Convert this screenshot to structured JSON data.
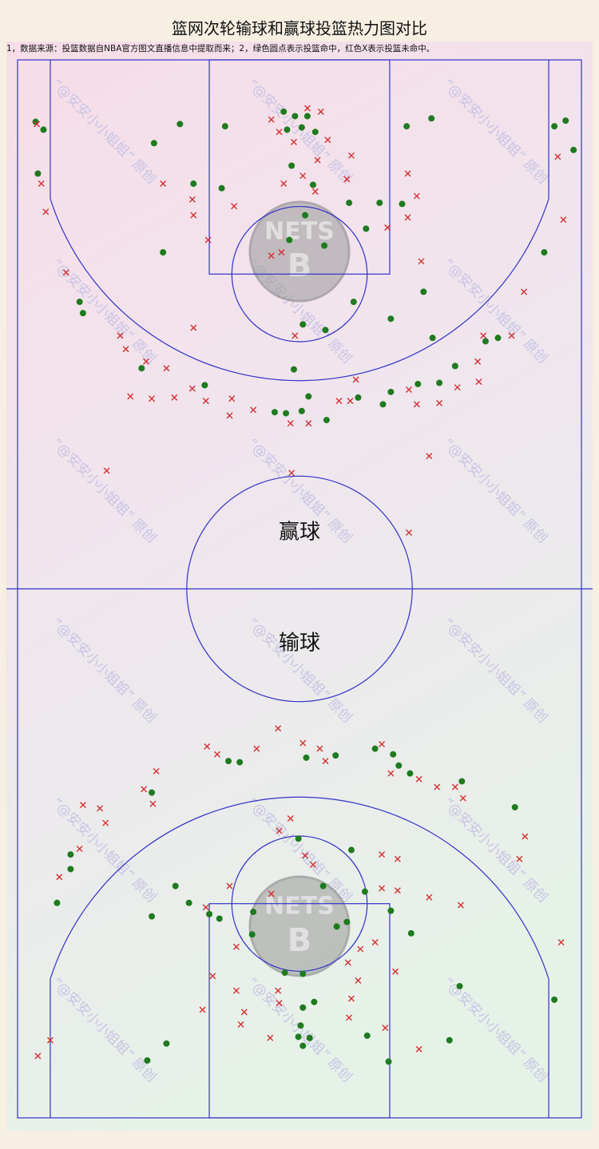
{
  "title": "篮网次轮输球和赢球投篮热力图对比",
  "note": "1，数据来源：投篮数据自NBA官方图文直播信息中提取而来；2，绿色圆点表示投篮命中，红色X表示投篮未命中。",
  "watermark": "“@安安小小姐姐” 原创",
  "logo_text": "NETS",
  "logo_letter": "B",
  "chart_data": [
    {
      "type": "scatter",
      "label": "赢球",
      "xlim": [
        0,
        50
      ],
      "ylim": [
        0,
        47
      ],
      "series": [
        {
          "color": "#1e7b1e",
          "marker": "o",
          "x": [
            1.6,
            2.3,
            1.8,
            14.4,
            18.4,
            12.1,
            15.6,
            18.1,
            23.6,
            24.6,
            25.7,
            25.2,
            23.9,
            26.4,
            34.5,
            36.7,
            47.6,
            48.6,
            49.3,
            24.3,
            26.2,
            25.5,
            24.1,
            27.2,
            29.4,
            32.1,
            34.1,
            30.9,
            12.9,
            46.7,
            36.0,
            29.8,
            5.5,
            5.8,
            33.1,
            25.3,
            27.3,
            36.8,
            41.5,
            42.6,
            24.5,
            11.0,
            16.6,
            38.8,
            37.4,
            35.5,
            33.1,
            32.4,
            30.2,
            25.8,
            25.2,
            23.8,
            22.8,
            27.4
          ],
          "y": [
            5.5,
            6.2,
            10.1,
            5.7,
            5.9,
            7.4,
            11.0,
            11.4,
            4.6,
            5.0,
            5.0,
            6.0,
            6.2,
            6.4,
            5.9,
            5.2,
            5.9,
            5.4,
            8.0,
            9.4,
            11.1,
            13.8,
            16.0,
            16.5,
            12.7,
            12.7,
            12.8,
            15.0,
            17.1,
            17.1,
            20.6,
            21.5,
            21.5,
            22.5,
            23.0,
            23.5,
            24.0,
            24.7,
            25.0,
            24.7,
            27.5,
            27.4,
            28.9,
            27.2,
            28.7,
            28.8,
            29.5,
            30.6,
            30.0,
            29.9,
            31.2,
            31.4,
            31.3,
            32.0
          ]
        },
        {
          "color": "#d43030",
          "marker": "x",
          "x": [
            1.7,
            2.1,
            2.5,
            12.9,
            15.5,
            15.6,
            16.9,
            19.2,
            22.5,
            23.2,
            24.5,
            25.7,
            26.9,
            27.5,
            26.6,
            23.6,
            25.3,
            26.4,
            29.2,
            29.6,
            34.6,
            35.4,
            34.6,
            32.8,
            22.5,
            23.4,
            35.8,
            47.9,
            48.4,
            4.3,
            15.6,
            9.1,
            9.6,
            11.4,
            13.2,
            10.0,
            11.9,
            13.9,
            15.5,
            16.7,
            19.0,
            18.8,
            20.9,
            24.2,
            25.8,
            28.5,
            29.5,
            30.0,
            34.7,
            35.4,
            37.4,
            39.0,
            40.8,
            40.9,
            41.3,
            43.8,
            44.9,
            36.5,
            24.3,
            34.7,
            7.9,
            24.6
          ],
          "y": [
            5.7,
            11.0,
            13.5,
            11.0,
            12.4,
            13.8,
            16.0,
            13.0,
            5.3,
            6.4,
            7.3,
            4.3,
            4.6,
            7.1,
            8.9,
            11.0,
            10.3,
            11.7,
            10.6,
            8.5,
            10.1,
            12.1,
            14.0,
            14.9,
            17.4,
            17.1,
            17.9,
            8.6,
            14.2,
            18.9,
            23.8,
            24.5,
            25.7,
            26.8,
            27.4,
            29.9,
            30.1,
            30.0,
            29.2,
            30.3,
            30.1,
            31.6,
            31.1,
            32.3,
            32.3,
            30.3,
            30.3,
            28.4,
            29.3,
            30.6,
            30.5,
            29.1,
            26.8,
            28.6,
            24.5,
            24.5,
            20.6,
            35.2,
            36.7,
            42.0,
            36.5,
            24.5
          ]
        }
      ]
    },
    {
      "type": "scatter",
      "label": "输球",
      "xlim": [
        0,
        50
      ],
      "ylim": [
        0,
        47
      ],
      "series": [
        {
          "color": "#1e7b1e",
          "marker": "o",
          "x": [
            18.7,
            19.7,
            25.6,
            28.2,
            31.7,
            33.3,
            33.8,
            34.8,
            39.4,
            11.9,
            44.1,
            4.7,
            4.7,
            3.5,
            11.9,
            14.0,
            15.2,
            24.9,
            29.6,
            27.1,
            30.8,
            20.9,
            20.8,
            17.0,
            17.9,
            28.3,
            29.2,
            33.1,
            34.9,
            23.7,
            25.3,
            25.3,
            26.3,
            25.1,
            25.9,
            25.3,
            24.9,
            31.0,
            32.9,
            38.3,
            39.2,
            47.6,
            13.2,
            11.5
          ],
          "y": [
            31.7,
            31.6,
            32.0,
            32.2,
            32.8,
            32.3,
            31.3,
            30.6,
            29.9,
            28.9,
            27.6,
            23.4,
            22.1,
            19.1,
            17.9,
            20.6,
            19.1,
            24.8,
            23.8,
            20.6,
            20.1,
            18.3,
            16.3,
            18.1,
            17.7,
            17.0,
            17.4,
            18.4,
            16.4,
            12.9,
            12.8,
            9.8,
            10.3,
            8.2,
            7.1,
            6.4,
            7.2,
            7.3,
            5.0,
            6.9,
            11.7,
            10.5,
            6.6,
            5.1
          ]
        },
        {
          "color": "#d43030",
          "marker": "x",
          "x": [
            16.8,
            17.7,
            21.2,
            23.1,
            25.3,
            26.8,
            27.3,
            32.3,
            33.1,
            35.6,
            37.2,
            38.8,
            39.5,
            12.3,
            11.2,
            12.0,
            5.8,
            7.3,
            7.8,
            5.5,
            3.7,
            45.0,
            44.5,
            48.2,
            2.9,
            1.8,
            24.2,
            23.2,
            25.5,
            26.2,
            18.8,
            22.5,
            16.7,
            32.3,
            33.7,
            32.3,
            33.7,
            36.5,
            39.3,
            19.4,
            17.3,
            19.4,
            20.1,
            16.4,
            23.1,
            23.2,
            22.4,
            19.8,
            29.3,
            29.6,
            30.2,
            33.5,
            29.4,
            32.6,
            35.6,
            30.4,
            31.7
          ],
          "y": [
            33.0,
            32.3,
            32.8,
            34.6,
            33.3,
            32.8,
            31.7,
            33.2,
            30.6,
            30.1,
            29.4,
            29.4,
            28.4,
            30.8,
            29.2,
            27.9,
            27.8,
            27.5,
            26.2,
            23.9,
            21.4,
            25.0,
            23.0,
            15.6,
            6.9,
            5.5,
            26.6,
            25.5,
            23.3,
            22.5,
            20.6,
            19.9,
            18.7,
            23.4,
            23.0,
            20.4,
            20.2,
            19.6,
            18.9,
            15.2,
            12.6,
            11.3,
            9.4,
            9.6,
            11.3,
            10.2,
            7.1,
            8.3,
            13.8,
            10.6,
            12.2,
            13.0,
            8.9,
            8.0,
            6.1,
            15.0,
            15.6
          ]
        }
      ]
    }
  ]
}
